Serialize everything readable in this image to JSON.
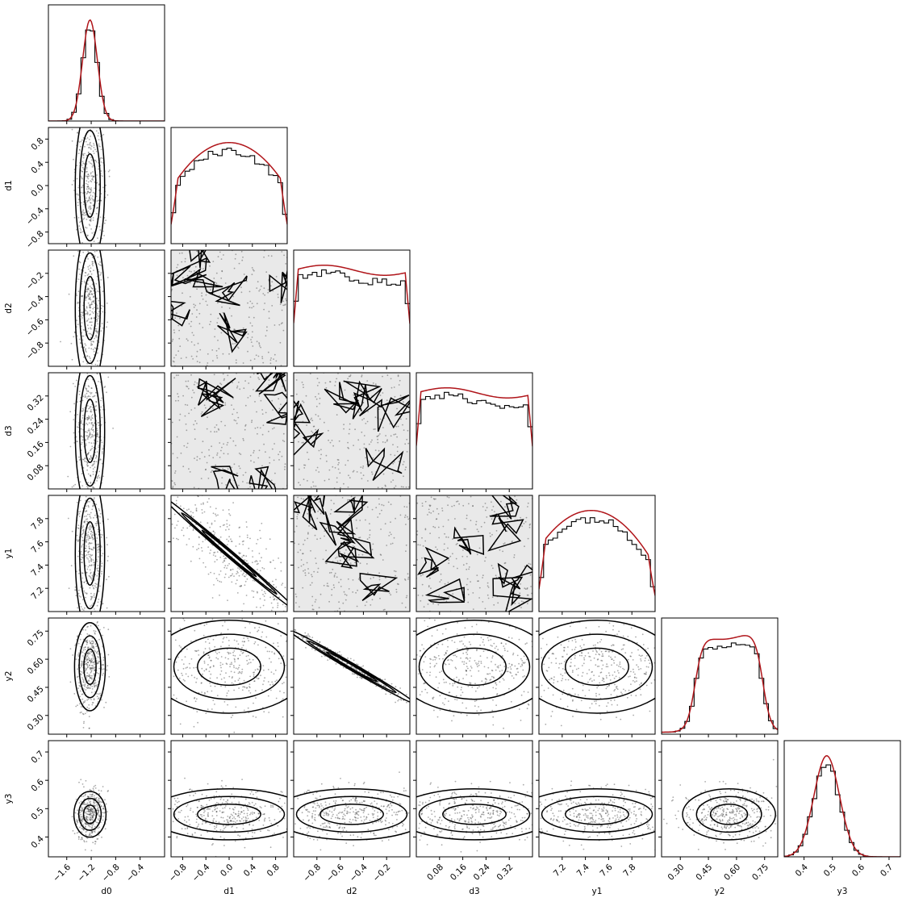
{
  "chart_data": {
    "type": "corner",
    "parameters": [
      {
        "name": "d0",
        "range": [
          -1.9,
          0.0
        ],
        "ticks": [
          -1.6,
          -1.2,
          -0.8,
          -0.4
        ],
        "tick_labels": [
          "−1.6",
          "−1.2",
          "−0.8",
          "−0.4"
        ]
      },
      {
        "name": "d1",
        "range": [
          -1.0,
          1.0
        ],
        "ticks": [
          -0.8,
          -0.4,
          0.0,
          0.4,
          0.8
        ],
        "tick_labels": [
          "−0.8",
          "−0.4",
          "0.0",
          "0.4",
          "0.8"
        ]
      },
      {
        "name": "d2",
        "range": [
          -1.0,
          0.0
        ],
        "ticks": [
          -0.8,
          -0.6,
          -0.4,
          -0.2
        ],
        "tick_labels": [
          "−0.8",
          "−0.6",
          "−0.4",
          "−0.2"
        ]
      },
      {
        "name": "d3",
        "range": [
          0.0,
          0.4
        ],
        "ticks": [
          0.08,
          0.16,
          0.24,
          0.32
        ],
        "tick_labels": [
          "0.08",
          "0.16",
          "0.24",
          "0.32"
        ]
      },
      {
        "name": "y1",
        "range": [
          7.0,
          8.0
        ],
        "ticks": [
          7.2,
          7.4,
          7.6,
          7.8
        ],
        "tick_labels": [
          "7.2",
          "7.4",
          "7.6",
          "7.8"
        ]
      },
      {
        "name": "y2",
        "range": [
          0.2,
          0.82
        ],
        "ticks": [
          0.3,
          0.45,
          0.6,
          0.75
        ],
        "tick_labels": [
          "0.30",
          "0.45",
          "0.60",
          "0.75"
        ]
      },
      {
        "name": "y3",
        "range": [
          0.33,
          0.74
        ],
        "ticks": [
          0.4,
          0.5,
          0.6,
          0.7
        ],
        "tick_labels": [
          "0.4",
          "0.5",
          "0.6",
          "0.7"
        ]
      }
    ],
    "marginals": [
      {
        "param": "d0",
        "shape": "gaussian",
        "mean": -1.22,
        "sd": 0.12
      },
      {
        "param": "d1",
        "shape": "broad",
        "peak": 0.0
      },
      {
        "param": "d2",
        "shape": "flat"
      },
      {
        "param": "d3",
        "shape": "flat"
      },
      {
        "param": "y1",
        "shape": "broad",
        "peak": 7.45
      },
      {
        "param": "y2",
        "shape": "plateau",
        "low": 0.38,
        "high": 0.74
      },
      {
        "param": "y3",
        "shape": "gaussian",
        "mean": 0.48,
        "sd": 0.045
      }
    ],
    "joint_correlations": [
      {
        "x": "d1",
        "y": "y1",
        "correlation": -0.85
      },
      {
        "x": "d2",
        "y": "y2",
        "correlation": -0.99
      },
      {
        "x": "d0",
        "y": "y2",
        "correlation": 0.1
      },
      {
        "x": "d0",
        "y": "y3",
        "correlation": 0.2
      }
    ],
    "colors": {
      "histogram": "#000000",
      "fit_line": "#b0151a",
      "samples": "#444444"
    },
    "grid": false,
    "legend": "none"
  }
}
